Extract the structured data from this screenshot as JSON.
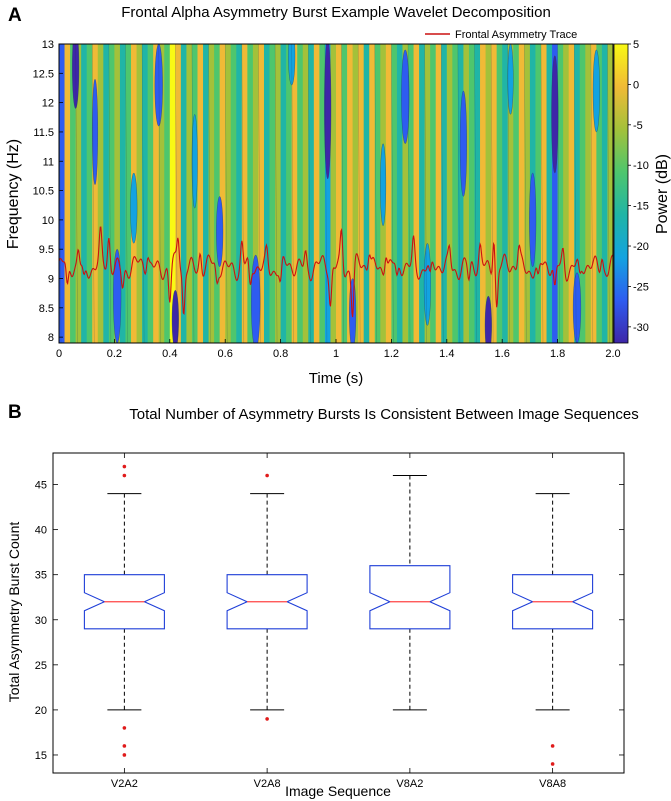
{
  "chart_data": [
    {
      "panel": "A",
      "type": "heatmap",
      "title": "Frontal Alpha Asymmetry Burst Example Wavelet Decomposition",
      "xlabel": "Time (s)",
      "ylabel": "Frequency (Hz)",
      "xlim": [
        0,
        2.0
      ],
      "ylim": [
        7.9,
        13.0
      ],
      "x_ticks": [
        "0",
        "0.2",
        "0.4",
        "0.6",
        "0.8",
        "1",
        "1.2",
        "1.4",
        "1.6",
        "1.8",
        "2.0"
      ],
      "y_ticks": [
        "8",
        "8.5",
        "9",
        "9.5",
        "10",
        "10.5",
        "11",
        "11.5",
        "12",
        "12.5",
        "13"
      ],
      "colorbar": {
        "label": "Power (dB)",
        "range": [
          -32,
          5
        ],
        "ticks": [
          "5",
          "0",
          "-5",
          "-10",
          "-15",
          "-20",
          "-25",
          "-30"
        ],
        "colors": [
          "#3e26a8",
          "#2e5cf0",
          "#13a3e0",
          "#20b5a6",
          "#4ec66d",
          "#a3c13a",
          "#f0ba36",
          "#f9f914"
        ]
      },
      "legend": "Frontal Asymmetry Trace",
      "trace_color": "#cc1111",
      "trace_base_hz": 9.2,
      "bands": [
        [
          0.0,
          0.02,
          1
        ],
        [
          0.02,
          0.04,
          6
        ],
        [
          0.04,
          0.06,
          4
        ],
        [
          0.06,
          0.08,
          5
        ],
        [
          0.08,
          0.1,
          3
        ],
        [
          0.1,
          0.12,
          4
        ],
        [
          0.12,
          0.14,
          6
        ],
        [
          0.14,
          0.16,
          5
        ],
        [
          0.16,
          0.18,
          3
        ],
        [
          0.18,
          0.2,
          4
        ],
        [
          0.2,
          0.22,
          5
        ],
        [
          0.22,
          0.24,
          3
        ],
        [
          0.24,
          0.26,
          4
        ],
        [
          0.26,
          0.28,
          6
        ],
        [
          0.28,
          0.3,
          5
        ],
        [
          0.3,
          0.32,
          3
        ],
        [
          0.32,
          0.34,
          4
        ],
        [
          0.34,
          0.36,
          6
        ],
        [
          0.36,
          0.38,
          5
        ],
        [
          0.38,
          0.4,
          4
        ],
        [
          0.4,
          0.42,
          7
        ],
        [
          0.42,
          0.44,
          6
        ],
        [
          0.44,
          0.46,
          3
        ],
        [
          0.46,
          0.48,
          5
        ],
        [
          0.48,
          0.5,
          4
        ],
        [
          0.5,
          0.52,
          6
        ],
        [
          0.52,
          0.54,
          3
        ],
        [
          0.54,
          0.56,
          5
        ],
        [
          0.56,
          0.58,
          4
        ],
        [
          0.58,
          0.6,
          6
        ],
        [
          0.6,
          0.62,
          5
        ],
        [
          0.62,
          0.64,
          4
        ],
        [
          0.64,
          0.66,
          3
        ],
        [
          0.66,
          0.68,
          6
        ],
        [
          0.68,
          0.7,
          4
        ],
        [
          0.7,
          0.72,
          5
        ],
        [
          0.72,
          0.74,
          6
        ],
        [
          0.74,
          0.76,
          3
        ],
        [
          0.76,
          0.78,
          4
        ],
        [
          0.78,
          0.8,
          5
        ],
        [
          0.8,
          0.82,
          3
        ],
        [
          0.82,
          0.84,
          4
        ],
        [
          0.84,
          0.86,
          6
        ],
        [
          0.86,
          0.88,
          4
        ],
        [
          0.88,
          0.9,
          5
        ],
        [
          0.9,
          0.92,
          3
        ],
        [
          0.92,
          0.94,
          6
        ],
        [
          0.94,
          0.96,
          4
        ],
        [
          0.96,
          0.98,
          2
        ],
        [
          0.98,
          1.0,
          5
        ],
        [
          1.0,
          1.02,
          6
        ],
        [
          1.02,
          1.04,
          4
        ],
        [
          1.04,
          1.06,
          6
        ],
        [
          1.06,
          1.08,
          5
        ],
        [
          1.08,
          1.1,
          6
        ],
        [
          1.1,
          1.12,
          3
        ],
        [
          1.12,
          1.14,
          6
        ],
        [
          1.14,
          1.16,
          4
        ],
        [
          1.16,
          1.18,
          5
        ],
        [
          1.18,
          1.2,
          6
        ],
        [
          1.2,
          1.22,
          4
        ],
        [
          1.22,
          1.24,
          3
        ],
        [
          1.24,
          1.26,
          5
        ],
        [
          1.26,
          1.28,
          4
        ],
        [
          1.28,
          1.3,
          6
        ],
        [
          1.3,
          1.32,
          3
        ],
        [
          1.32,
          1.34,
          5
        ],
        [
          1.34,
          1.36,
          4
        ],
        [
          1.36,
          1.38,
          6
        ],
        [
          1.38,
          1.4,
          3
        ],
        [
          1.4,
          1.42,
          5
        ],
        [
          1.42,
          1.44,
          4
        ],
        [
          1.44,
          1.46,
          3
        ],
        [
          1.46,
          1.48,
          5
        ],
        [
          1.48,
          1.5,
          4
        ],
        [
          1.5,
          1.52,
          3
        ],
        [
          1.52,
          1.54,
          6
        ],
        [
          1.54,
          1.56,
          5
        ],
        [
          1.56,
          1.58,
          6
        ],
        [
          1.58,
          1.6,
          4
        ],
        [
          1.6,
          1.62,
          3
        ],
        [
          1.62,
          1.64,
          5
        ],
        [
          1.64,
          1.66,
          4
        ],
        [
          1.66,
          1.68,
          6
        ],
        [
          1.68,
          1.7,
          5
        ],
        [
          1.7,
          1.72,
          3
        ],
        [
          1.72,
          1.74,
          4
        ],
        [
          1.74,
          1.76,
          6
        ],
        [
          1.76,
          1.78,
          3
        ],
        [
          1.78,
          1.8,
          1
        ],
        [
          1.8,
          1.82,
          4
        ],
        [
          1.82,
          1.84,
          5
        ],
        [
          1.84,
          1.86,
          6
        ],
        [
          1.86,
          1.88,
          3
        ],
        [
          1.88,
          1.9,
          4
        ],
        [
          1.9,
          1.92,
          5
        ],
        [
          1.92,
          1.94,
          6
        ],
        [
          1.94,
          1.96,
          4
        ],
        [
          1.96,
          1.98,
          3
        ],
        [
          1.98,
          2.0,
          5
        ]
      ],
      "blobs": [
        [
          0.06,
          12.6,
          0.012,
          0.7,
          0
        ],
        [
          0.13,
          11.5,
          0.01,
          0.9,
          1
        ],
        [
          0.21,
          8.7,
          0.014,
          0.8,
          1
        ],
        [
          0.27,
          10.2,
          0.012,
          0.6,
          2
        ],
        [
          0.36,
          12.3,
          0.014,
          0.7,
          1
        ],
        [
          0.42,
          8.3,
          0.012,
          0.5,
          0
        ],
        [
          0.49,
          11.0,
          0.01,
          0.8,
          2
        ],
        [
          0.58,
          9.8,
          0.012,
          0.6,
          1
        ],
        [
          0.71,
          8.6,
          0.016,
          0.8,
          1
        ],
        [
          0.84,
          12.8,
          0.012,
          0.5,
          2
        ],
        [
          0.97,
          11.9,
          0.012,
          1.2,
          0
        ],
        [
          1.06,
          8.4,
          0.012,
          0.6,
          1
        ],
        [
          1.17,
          10.6,
          0.01,
          0.7,
          2
        ],
        [
          1.25,
          12.1,
          0.014,
          0.8,
          1
        ],
        [
          1.33,
          8.9,
          0.012,
          0.7,
          2
        ],
        [
          1.46,
          11.3,
          0.012,
          0.9,
          1
        ],
        [
          1.55,
          8.2,
          0.012,
          0.5,
          0
        ],
        [
          1.63,
          12.4,
          0.01,
          0.6,
          2
        ],
        [
          1.71,
          10.0,
          0.012,
          0.8,
          1
        ],
        [
          1.79,
          11.8,
          0.012,
          1.0,
          0
        ],
        [
          1.87,
          8.5,
          0.014,
          0.6,
          1
        ],
        [
          1.94,
          12.2,
          0.012,
          0.7,
          2
        ]
      ],
      "trace_dips": [
        [
          0.03,
          8.75
        ],
        [
          0.09,
          8.95
        ],
        [
          0.23,
          8.9
        ],
        [
          0.4,
          8.6
        ],
        [
          0.45,
          8.4
        ],
        [
          0.57,
          8.9
        ],
        [
          0.69,
          8.75
        ],
        [
          0.8,
          8.85
        ],
        [
          0.98,
          8.55
        ],
        [
          1.06,
          8.4
        ],
        [
          1.22,
          8.9
        ],
        [
          1.34,
          8.9
        ],
        [
          1.48,
          8.9
        ],
        [
          1.58,
          8.5
        ],
        [
          1.73,
          8.9
        ],
        [
          1.79,
          8.75
        ],
        [
          1.88,
          8.95
        ]
      ],
      "trace_peaks": [
        [
          0.07,
          9.5
        ],
        [
          0.15,
          9.65
        ],
        [
          0.18,
          9.7
        ],
        [
          0.32,
          9.45
        ],
        [
          0.43,
          9.7
        ],
        [
          0.51,
          9.5
        ],
        [
          0.66,
          9.6
        ],
        [
          0.75,
          9.45
        ],
        [
          0.89,
          9.45
        ],
        [
          1.02,
          9.8
        ],
        [
          1.12,
          9.5
        ],
        [
          1.18,
          9.55
        ],
        [
          1.28,
          9.6
        ],
        [
          1.41,
          9.5
        ],
        [
          1.52,
          9.5
        ],
        [
          1.57,
          9.85
        ],
        [
          1.66,
          9.5
        ],
        [
          1.82,
          9.5
        ],
        [
          1.96,
          9.45
        ]
      ]
    },
    {
      "panel": "B",
      "type": "box",
      "title": "Total Number of Asymmetry Bursts Is Consistent Between Image Sequences",
      "xlabel": "Image Sequence",
      "ylabel": "Total Asymmetry Burst Count",
      "ylim": [
        13,
        48.5
      ],
      "y_ticks": [
        15,
        20,
        25,
        30,
        35,
        40,
        45
      ],
      "categories": [
        "V2A2",
        "V2A8",
        "V8A2",
        "V8A8"
      ],
      "box_color": "#1f3fd8",
      "median_color": "#ff4444",
      "outlier_color": "#e01b1b",
      "boxes": [
        {
          "category": "V2A2",
          "whisker_low": 20,
          "q1": 29,
          "median": 32,
          "q3": 35,
          "whisker_high": 44,
          "notch_low": 31,
          "notch_high": 33,
          "outliers": [
            47,
            46,
            18,
            16,
            15
          ]
        },
        {
          "category": "V2A8",
          "whisker_low": 20,
          "q1": 29,
          "median": 32,
          "q3": 35,
          "whisker_high": 44,
          "notch_low": 31,
          "notch_high": 33,
          "outliers": [
            46,
            19
          ]
        },
        {
          "category": "V8A2",
          "whisker_low": 20,
          "q1": 29,
          "median": 32,
          "q3": 36,
          "whisker_high": 46,
          "notch_low": 31,
          "notch_high": 33,
          "outliers": []
        },
        {
          "category": "V8A8",
          "whisker_low": 20,
          "q1": 29,
          "median": 32,
          "q3": 35,
          "whisker_high": 44,
          "notch_low": 31,
          "notch_high": 33,
          "outliers": [
            16,
            14
          ]
        }
      ]
    }
  ],
  "panel_labels": {
    "a": "A",
    "b": "B"
  }
}
